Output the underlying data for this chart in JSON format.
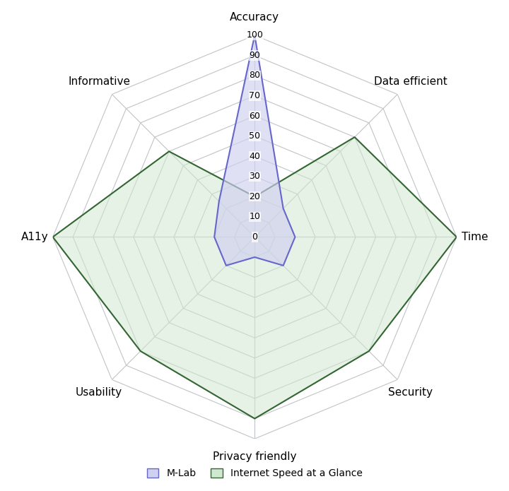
{
  "categories": [
    "Accuracy",
    "Data efficient",
    "Time",
    "Security",
    "Privacy friendly",
    "Usability",
    "A11y",
    "Informative"
  ],
  "mlab": [
    100,
    20,
    20,
    20,
    10,
    20,
    20,
    25
  ],
  "isag": [
    20,
    70,
    100,
    80,
    90,
    80,
    100,
    60
  ],
  "mlab_line_color": "#6666cc",
  "mlab_fill_color": "#d0d0f0",
  "mlab_fill_alpha": 0.65,
  "isag_line_color": "#336633",
  "isag_fill_color": "#d0e8d0",
  "isag_fill_alpha": 0.55,
  "grid_color": "#c0c4c8",
  "grid_linewidth": 0.8,
  "tick_values": [
    0,
    10,
    20,
    30,
    40,
    50,
    60,
    70,
    80,
    90,
    100
  ],
  "r_max": 100,
  "legend_mlab": "M-Lab",
  "legend_isag": "Internet Speed at a Glance",
  "label_fontsize": 11,
  "tick_fontsize": 9,
  "bg_color": "#ffffff"
}
